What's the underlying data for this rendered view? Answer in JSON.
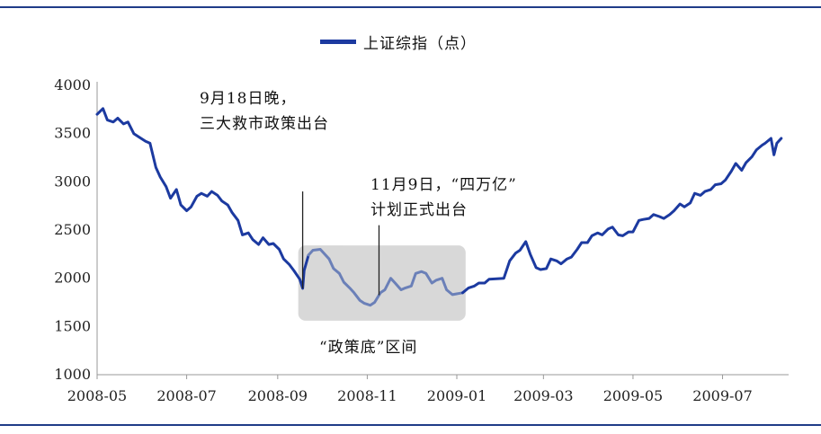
{
  "chart_data": {
    "type": "line",
    "legend": "上证综指（点）",
    "legend_placement": "top-center",
    "color": "#1c3aa0",
    "highlight_color": "#6b80b8",
    "highlight_range": [
      "2008-09-25",
      "2009-01-05"
    ],
    "ylim": [
      1000,
      4000
    ],
    "yticks": [
      1000,
      1500,
      2000,
      2500,
      3000,
      3500,
      4000
    ],
    "xlim": [
      "2008-05-01",
      "2009-08-15"
    ],
    "xticks": [
      "2008-05",
      "2008-07",
      "2008-09",
      "2008-11",
      "2009-01",
      "2009-03",
      "2009-05",
      "2009-07"
    ],
    "grid": false,
    "series": [
      {
        "points": [
          [
            "2008-05-01",
            3700
          ],
          [
            "2008-05-05",
            3760
          ],
          [
            "2008-05-08",
            3640
          ],
          [
            "2008-05-12",
            3620
          ],
          [
            "2008-05-15",
            3660
          ],
          [
            "2008-05-19",
            3600
          ],
          [
            "2008-05-22",
            3620
          ],
          [
            "2008-05-26",
            3500
          ],
          [
            "2008-05-30",
            3460
          ],
          [
            "2008-06-03",
            3420
          ],
          [
            "2008-06-06",
            3400
          ],
          [
            "2008-06-10",
            3150
          ],
          [
            "2008-06-13",
            3050
          ],
          [
            "2008-06-17",
            2950
          ],
          [
            "2008-06-20",
            2830
          ],
          [
            "2008-06-24",
            2920
          ],
          [
            "2008-06-27",
            2760
          ],
          [
            "2008-07-01",
            2700
          ],
          [
            "2008-07-04",
            2740
          ],
          [
            "2008-07-08",
            2850
          ],
          [
            "2008-07-11",
            2880
          ],
          [
            "2008-07-15",
            2850
          ],
          [
            "2008-07-18",
            2900
          ],
          [
            "2008-07-22",
            2860
          ],
          [
            "2008-07-25",
            2800
          ],
          [
            "2008-07-29",
            2760
          ],
          [
            "2008-08-01",
            2680
          ],
          [
            "2008-08-05",
            2600
          ],
          [
            "2008-08-08",
            2450
          ],
          [
            "2008-08-12",
            2470
          ],
          [
            "2008-08-15",
            2400
          ],
          [
            "2008-08-19",
            2350
          ],
          [
            "2008-08-22",
            2420
          ],
          [
            "2008-08-26",
            2350
          ],
          [
            "2008-08-29",
            2360
          ],
          [
            "2008-09-02",
            2300
          ],
          [
            "2008-09-05",
            2200
          ],
          [
            "2008-09-09",
            2140
          ],
          [
            "2008-09-12",
            2080
          ],
          [
            "2008-09-16",
            1990
          ],
          [
            "2008-09-18",
            1895
          ],
          [
            "2008-09-19",
            2080
          ],
          [
            "2008-09-22",
            2240
          ],
          [
            "2008-09-25",
            2290
          ],
          [
            "2008-09-30",
            2300
          ],
          [
            "2008-10-06",
            2200
          ],
          [
            "2008-10-09",
            2100
          ],
          [
            "2008-10-13",
            2050
          ],
          [
            "2008-10-16",
            1960
          ],
          [
            "2008-10-20",
            1900
          ],
          [
            "2008-10-23",
            1850
          ],
          [
            "2008-10-27",
            1770
          ],
          [
            "2008-10-30",
            1740
          ],
          [
            "2008-11-03",
            1720
          ],
          [
            "2008-11-06",
            1750
          ],
          [
            "2008-11-10",
            1850
          ],
          [
            "2008-11-13",
            1880
          ],
          [
            "2008-11-17",
            2000
          ],
          [
            "2008-11-20",
            1950
          ],
          [
            "2008-11-24",
            1880
          ],
          [
            "2008-11-27",
            1900
          ],
          [
            "2008-12-01",
            1920
          ],
          [
            "2008-12-04",
            2050
          ],
          [
            "2008-12-08",
            2070
          ],
          [
            "2008-12-11",
            2050
          ],
          [
            "2008-12-15",
            1950
          ],
          [
            "2008-12-18",
            1980
          ],
          [
            "2008-12-22",
            2000
          ],
          [
            "2008-12-25",
            1880
          ],
          [
            "2008-12-29",
            1830
          ],
          [
            "2009-01-05",
            1850
          ],
          [
            "2009-01-09",
            1900
          ],
          [
            "2009-01-13",
            1920
          ],
          [
            "2009-01-16",
            1950
          ],
          [
            "2009-01-20",
            1950
          ],
          [
            "2009-01-23",
            1990
          ],
          [
            "2009-02-02",
            2000
          ],
          [
            "2009-02-06",
            2180
          ],
          [
            "2009-02-10",
            2260
          ],
          [
            "2009-02-13",
            2290
          ],
          [
            "2009-02-17",
            2380
          ],
          [
            "2009-02-20",
            2250
          ],
          [
            "2009-02-24",
            2110
          ],
          [
            "2009-02-27",
            2090
          ],
          [
            "2009-03-03",
            2100
          ],
          [
            "2009-03-06",
            2200
          ],
          [
            "2009-03-10",
            2180
          ],
          [
            "2009-03-13",
            2150
          ],
          [
            "2009-03-17",
            2200
          ],
          [
            "2009-03-20",
            2220
          ],
          [
            "2009-03-24",
            2300
          ],
          [
            "2009-03-27",
            2370
          ],
          [
            "2009-03-31",
            2370
          ],
          [
            "2009-04-03",
            2440
          ],
          [
            "2009-04-07",
            2470
          ],
          [
            "2009-04-10",
            2450
          ],
          [
            "2009-04-14",
            2510
          ],
          [
            "2009-04-17",
            2530
          ],
          [
            "2009-04-21",
            2450
          ],
          [
            "2009-04-24",
            2440
          ],
          [
            "2009-04-28",
            2480
          ],
          [
            "2009-05-01",
            2480
          ],
          [
            "2009-05-05",
            2600
          ],
          [
            "2009-05-08",
            2610
          ],
          [
            "2009-05-12",
            2620
          ],
          [
            "2009-05-15",
            2660
          ],
          [
            "2009-05-19",
            2640
          ],
          [
            "2009-05-22",
            2620
          ],
          [
            "2009-05-26",
            2660
          ],
          [
            "2009-05-29",
            2700
          ],
          [
            "2009-06-02",
            2770
          ],
          [
            "2009-06-05",
            2740
          ],
          [
            "2009-06-09",
            2780
          ],
          [
            "2009-06-12",
            2880
          ],
          [
            "2009-06-16",
            2860
          ],
          [
            "2009-06-19",
            2900
          ],
          [
            "2009-06-23",
            2920
          ],
          [
            "2009-06-26",
            2970
          ],
          [
            "2009-06-30",
            2980
          ],
          [
            "2009-07-03",
            3020
          ],
          [
            "2009-07-07",
            3110
          ],
          [
            "2009-07-10",
            3190
          ],
          [
            "2009-07-14",
            3120
          ],
          [
            "2009-07-17",
            3200
          ],
          [
            "2009-07-21",
            3260
          ],
          [
            "2009-07-24",
            3330
          ],
          [
            "2009-07-28",
            3380
          ],
          [
            "2009-07-30",
            3400
          ],
          [
            "2009-08-03",
            3450
          ],
          [
            "2009-08-05",
            3280
          ],
          [
            "2009-08-07",
            3400
          ],
          [
            "2009-08-10",
            3450
          ]
        ]
      }
    ],
    "annotations": [
      {
        "date": "2008-09-18",
        "line_top": 2900,
        "lines": [
          "9月18日晚，",
          "三大救市政策出台"
        ]
      },
      {
        "date": "2008-11-09",
        "line_top": 2550,
        "lines": [
          "11月9日，“四万亿”",
          "计划正式出台"
        ]
      },
      {
        "region": [
          "2008-09-15",
          "2009-01-07"
        ],
        "ylim": [
          1560,
          2340
        ],
        "label": "“政策底”区间"
      }
    ]
  }
}
